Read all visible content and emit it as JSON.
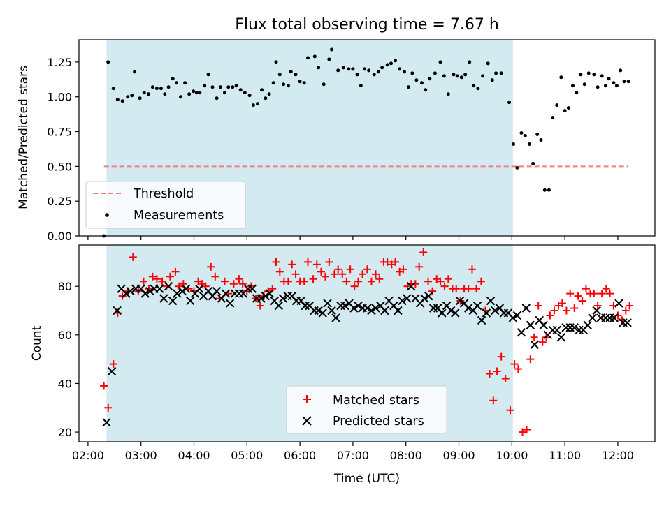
{
  "chart_data": [
    {
      "type": "scatter",
      "title": "Flux total observing time = 7.67 h",
      "xlabel": "",
      "ylabel": "Matched/Predicted stars",
      "xlim": [
        1.83,
        12.7
      ],
      "ylim": [
        0.0,
        1.41
      ],
      "x_ticks": [
        2,
        3,
        4,
        5,
        6,
        7,
        8,
        9,
        10,
        11,
        12
      ],
      "x_tick_labels": [
        "",
        "",
        "",
        "",
        "",
        "",
        "",
        "",
        "",
        "",
        ""
      ],
      "y_ticks": [
        0.0,
        0.25,
        0.5,
        0.75,
        1.0,
        1.25
      ],
      "y_tick_labels": [
        "0.00",
        "0.25",
        "0.50",
        "0.75",
        "1.00",
        "1.25"
      ],
      "shaded_span": [
        2.35,
        10.02
      ],
      "shaded_color": "#d3eaf1",
      "threshold": {
        "name": "Threshold",
        "value": 0.5,
        "x_range": [
          2.3,
          12.2
        ],
        "color": "#f08080"
      },
      "series": [
        {
          "name": "Measurements",
          "color": "#000000",
          "x": [
            2.3,
            2.38,
            2.48,
            2.56,
            2.65,
            2.75,
            2.83,
            2.88,
            2.98,
            3.06,
            3.14,
            3.22,
            3.3,
            3.38,
            3.45,
            3.52,
            3.6,
            3.67,
            3.75,
            3.83,
            3.91,
            3.99,
            4.05,
            4.11,
            4.2,
            4.27,
            4.35,
            4.43,
            4.5,
            4.58,
            4.65,
            4.73,
            4.8,
            4.88,
            4.96,
            5.05,
            5.12,
            5.2,
            5.28,
            5.35,
            5.42,
            5.5,
            5.55,
            5.62,
            5.69,
            5.78,
            5.83,
            5.92,
            6.0,
            6.08,
            6.15,
            6.28,
            6.35,
            6.45,
            6.55,
            6.6,
            6.72,
            6.82,
            6.92,
            7.0,
            7.08,
            7.15,
            7.22,
            7.3,
            7.4,
            7.48,
            7.55,
            7.65,
            7.72,
            7.8,
            7.88,
            7.97,
            8.05,
            8.12,
            8.2,
            8.3,
            8.37,
            8.45,
            8.55,
            8.65,
            8.72,
            8.8,
            8.9,
            8.97,
            9.05,
            9.12,
            9.2,
            9.28,
            9.36,
            9.45,
            9.55,
            9.63,
            9.7,
            9.8,
            9.95,
            10.03,
            10.1,
            10.18,
            10.25,
            10.33,
            10.4,
            10.48,
            10.55,
            10.62,
            10.7,
            10.77,
            10.85,
            10.93,
            11.0,
            11.07,
            11.15,
            11.22,
            11.3,
            11.37,
            11.45,
            11.55,
            11.62,
            11.7,
            11.77,
            11.83,
            11.92,
            11.98,
            12.05,
            12.12,
            12.2
          ],
          "y": [
            0.0,
            1.25,
            1.06,
            0.98,
            0.97,
            1.0,
            1.01,
            1.18,
            0.99,
            1.03,
            1.02,
            1.07,
            1.06,
            1.06,
            1.02,
            1.07,
            1.13,
            1.1,
            1.0,
            1.1,
            1.02,
            1.04,
            1.03,
            1.03,
            1.08,
            1.16,
            1.07,
            0.99,
            1.07,
            1.03,
            1.07,
            1.07,
            1.08,
            1.05,
            1.03,
            1.01,
            0.94,
            0.95,
            1.05,
            0.99,
            1.02,
            1.1,
            1.25,
            1.16,
            1.09,
            1.08,
            1.18,
            1.16,
            1.11,
            1.1,
            1.28,
            1.29,
            1.21,
            1.09,
            1.27,
            1.34,
            1.19,
            1.21,
            1.2,
            1.2,
            1.16,
            1.08,
            1.2,
            1.19,
            1.16,
            1.18,
            1.21,
            1.23,
            1.24,
            1.26,
            1.2,
            1.18,
            1.07,
            1.17,
            1.12,
            1.1,
            1.05,
            1.13,
            1.17,
            1.25,
            1.15,
            1.02,
            1.16,
            1.15,
            1.14,
            1.16,
            1.25,
            1.08,
            1.06,
            1.15,
            1.24,
            1.12,
            1.17,
            1.17,
            0.96,
            0.66,
            0.49,
            0.74,
            0.72,
            0.66,
            0.52,
            0.73,
            0.69,
            0.33,
            0.33,
            0.85,
            0.94,
            1.14,
            0.9,
            0.92,
            1.08,
            1.03,
            1.16,
            1.09,
            1.17,
            1.16,
            1.07,
            1.15,
            1.08,
            1.13,
            1.1,
            1.08,
            1.19,
            1.11,
            1.11
          ]
        }
      ],
      "legend": {
        "position": "bottom-left",
        "entries": [
          "Threshold",
          "Measurements"
        ]
      }
    },
    {
      "type": "scatter",
      "title": "",
      "xlabel": "Time (UTC)",
      "ylabel": "Count",
      "xlim": [
        1.83,
        12.7
      ],
      "ylim": [
        16,
        97
      ],
      "x_ticks": [
        2,
        3,
        4,
        5,
        6,
        7,
        8,
        9,
        10,
        11,
        12
      ],
      "x_tick_labels": [
        "02:00",
        "03:00",
        "04:00",
        "05:00",
        "06:00",
        "07:00",
        "08:00",
        "09:00",
        "10:00",
        "11:00",
        "12:00"
      ],
      "y_ticks": [
        20,
        40,
        60,
        80
      ],
      "y_tick_labels": [
        "20",
        "40",
        "60",
        "80"
      ],
      "shaded_span": [
        2.35,
        10.02
      ],
      "series": [
        {
          "name": "Matched stars",
          "color": "#ff0000",
          "marker": "+",
          "x": [
            2.3,
            2.38,
            2.48,
            2.56,
            2.65,
            2.75,
            2.85,
            2.95,
            3.05,
            3.15,
            3.22,
            3.3,
            3.4,
            3.48,
            3.55,
            3.65,
            3.72,
            3.8,
            3.9,
            4.0,
            4.08,
            4.15,
            4.22,
            4.32,
            4.4,
            4.48,
            4.58,
            4.65,
            4.75,
            4.85,
            4.92,
            5.0,
            5.08,
            5.17,
            5.25,
            5.32,
            5.4,
            5.48,
            5.55,
            5.62,
            5.7,
            5.78,
            5.85,
            5.92,
            6.0,
            6.08,
            6.15,
            6.25,
            6.32,
            6.4,
            6.48,
            6.55,
            6.65,
            6.72,
            6.8,
            6.88,
            6.95,
            7.03,
            7.1,
            7.18,
            7.27,
            7.35,
            7.43,
            7.5,
            7.58,
            7.65,
            7.73,
            7.8,
            7.88,
            7.95,
            8.03,
            8.1,
            8.18,
            8.25,
            8.33,
            8.42,
            8.5,
            8.58,
            8.65,
            8.73,
            8.8,
            8.88,
            8.95,
            9.03,
            9.1,
            9.18,
            9.25,
            9.33,
            9.42,
            9.5,
            9.58,
            9.65,
            9.72,
            9.8,
            9.88,
            9.97,
            10.05,
            10.12,
            10.2,
            10.28,
            10.35,
            10.42,
            10.5,
            10.58,
            10.65,
            10.72,
            10.8,
            10.88,
            10.95,
            11.03,
            11.1,
            11.18,
            11.25,
            11.33,
            11.4,
            11.48,
            11.55,
            11.62,
            11.7,
            11.78,
            11.85,
            11.92,
            12.0,
            12.08,
            12.15,
            12.22
          ],
          "y": [
            39,
            30,
            48,
            69,
            76,
            78,
            92,
            78,
            82,
            79,
            84,
            83,
            82,
            80,
            84,
            86,
            80,
            81,
            79,
            78,
            82,
            81,
            80,
            88,
            84,
            75,
            82,
            77,
            81,
            83,
            81,
            78,
            80,
            75,
            72,
            76,
            78,
            79,
            90,
            86,
            82,
            82,
            89,
            85,
            82,
            82,
            90,
            83,
            89,
            86,
            84,
            90,
            85,
            87,
            85,
            82,
            87,
            80,
            82,
            85,
            87,
            82,
            85,
            83,
            90,
            90,
            89,
            90,
            86,
            87,
            80,
            81,
            81,
            88,
            94,
            82,
            78,
            83,
            82,
            80,
            83,
            79,
            79,
            74,
            79,
            79,
            87,
            79,
            82,
            70,
            44,
            33,
            45,
            51,
            42,
            29,
            48,
            46,
            20,
            21,
            50,
            59,
            72,
            57,
            59,
            68,
            70,
            72,
            73,
            70,
            77,
            71,
            76,
            74,
            79,
            77,
            77,
            72,
            77,
            79,
            77,
            72,
            68,
            66,
            70,
            72
          ],
          "x_fix": true
        },
        {
          "name": "Predicted stars",
          "color": "#000000",
          "marker": "x",
          "x": [
            2.35,
            2.45,
            2.55,
            2.63,
            2.72,
            2.8,
            2.9,
            3.0,
            3.08,
            3.17,
            3.25,
            3.35,
            3.43,
            3.52,
            3.6,
            3.68,
            3.78,
            3.85,
            3.93,
            4.02,
            4.1,
            4.18,
            4.27,
            4.35,
            4.43,
            4.52,
            4.6,
            4.68,
            4.77,
            4.85,
            4.93,
            5.02,
            5.1,
            5.18,
            5.27,
            5.35,
            5.43,
            5.52,
            5.6,
            5.68,
            5.77,
            5.85,
            5.93,
            6.02,
            6.1,
            6.18,
            6.27,
            6.35,
            6.43,
            6.52,
            6.6,
            6.68,
            6.77,
            6.85,
            6.93,
            7.02,
            7.1,
            7.18,
            7.27,
            7.35,
            7.43,
            7.52,
            7.6,
            7.68,
            7.77,
            7.85,
            7.93,
            8.02,
            8.1,
            8.18,
            8.27,
            8.35,
            8.43,
            8.52,
            8.6,
            8.68,
            8.77,
            8.85,
            8.93,
            9.02,
            9.1,
            9.18,
            9.27,
            9.35,
            9.43,
            9.52,
            9.6,
            9.68,
            9.77,
            9.85,
            9.93,
            10.02,
            10.1,
            10.18,
            10.27,
            10.35,
            10.43,
            10.52,
            10.6,
            10.68,
            10.77,
            10.85,
            10.93,
            11.02,
            11.1,
            11.18,
            11.27,
            11.35,
            11.43,
            11.52,
            11.6,
            11.68,
            11.77,
            11.85,
            11.93,
            12.02,
            12.1,
            12.18
          ],
          "y": [
            24,
            45,
            70,
            79,
            77,
            78,
            79,
            79,
            77,
            78,
            79,
            79,
            75,
            80,
            74,
            77,
            78,
            79,
            74,
            77,
            79,
            76,
            78,
            76,
            78,
            75,
            77,
            73,
            77,
            77,
            77,
            79,
            79,
            75,
            75,
            76,
            77,
            74,
            72,
            75,
            76,
            76,
            74,
            74,
            72,
            72,
            70,
            70,
            69,
            73,
            70,
            67,
            72,
            72,
            73,
            71,
            72,
            71,
            71,
            70,
            71,
            72,
            70,
            74,
            72,
            70,
            74,
            75,
            80,
            75,
            73,
            75,
            76,
            71,
            71,
            69,
            72,
            70,
            69,
            74,
            73,
            71,
            70,
            72,
            66,
            69,
            74,
            70,
            71,
            69,
            69,
            67,
            68,
            61,
            71,
            64,
            56,
            66,
            64,
            60,
            62,
            62,
            59,
            63,
            63,
            63,
            62,
            62,
            64,
            67,
            70,
            67,
            67,
            67,
            67,
            73,
            65,
            65
          ],
          "x_fix": true
        }
      ],
      "legend": {
        "position": "bottom-center",
        "entries": [
          "Matched stars",
          "Predicted stars"
        ]
      }
    }
  ]
}
